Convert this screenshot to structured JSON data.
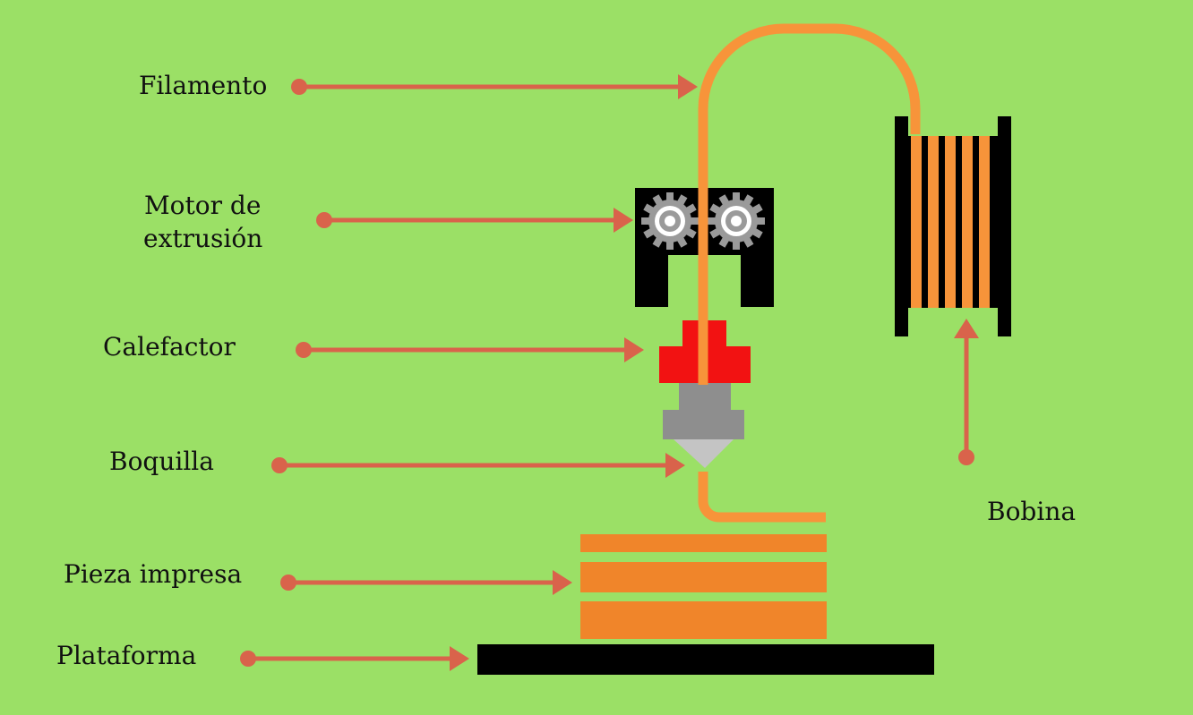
{
  "labels": {
    "filamento": "Filamento",
    "motor_line1": "Motor de",
    "motor_line2": "extrusión",
    "calefactor": "Calefactor",
    "boquilla": "Boquilla",
    "pieza": "Pieza impresa",
    "plataforma": "Plataforma",
    "bobina": "Bobina"
  },
  "colors": {
    "background": "#9BE066",
    "arrow": "#D9634B",
    "filament": "#F7943A",
    "printed_part": "#F0852A",
    "heater": "#F21212",
    "nozzle": "#8E8E8E",
    "nozzle_tip": "#C4C4C4",
    "frame": "#000000",
    "gear": "#9A9A9A"
  },
  "icons": {
    "gears": "gear-icon",
    "spool": "spool-icon"
  }
}
